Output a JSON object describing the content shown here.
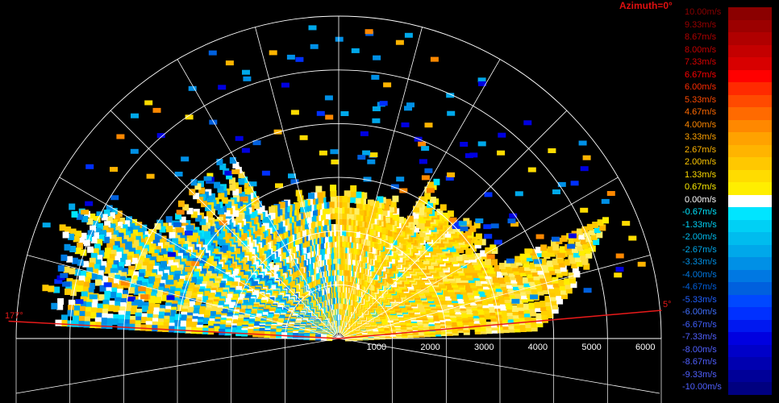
{
  "header": {
    "azimuth": "Azimuth=0°"
  },
  "angles": {
    "left": "177°",
    "right": "5°"
  },
  "range_labels": [
    "1000",
    "2000",
    "3000",
    "4000",
    "5000",
    "6000"
  ],
  "color_scale": [
    {
      "label": "10.00m/s",
      "color": "#8b0000"
    },
    {
      "label": "9.33m/s",
      "color": "#9c0000"
    },
    {
      "label": "8.67m/s",
      "color": "#b00000"
    },
    {
      "label": "8.00m/s",
      "color": "#c40000"
    },
    {
      "label": "7.33m/s",
      "color": "#d80000"
    },
    {
      "label": "6.67m/s",
      "color": "#ff0000"
    },
    {
      "label": "6.00m/s",
      "color": "#ff2a00"
    },
    {
      "label": "5.33m/s",
      "color": "#ff4a00"
    },
    {
      "label": "4.67m/s",
      "color": "#ff6a00"
    },
    {
      "label": "4.00m/s",
      "color": "#ff8800"
    },
    {
      "label": "3.33m/s",
      "color": "#ffa200"
    },
    {
      "label": "2.67m/s",
      "color": "#ffb400"
    },
    {
      "label": "2.00m/s",
      "color": "#ffc800"
    },
    {
      "label": "1.33m/s",
      "color": "#ffdc00"
    },
    {
      "label": "0.67m/s",
      "color": "#ffee00"
    },
    {
      "label": "0.00m/s",
      "color": "#ffffff"
    },
    {
      "label": "-0.67m/s",
      "color": "#00e5ff"
    },
    {
      "label": "-1.33m/s",
      "color": "#00d0f5"
    },
    {
      "label": "-2.00m/s",
      "color": "#00bcee"
    },
    {
      "label": "-2.67m/s",
      "color": "#00a8ea"
    },
    {
      "label": "-3.33m/s",
      "color": "#0090e6"
    },
    {
      "label": "-4.00m/s",
      "color": "#0078e2"
    },
    {
      "label": "-4.67m/s",
      "color": "#0060de"
    },
    {
      "label": "-5.33m/s",
      "color": "#0048ff"
    },
    {
      "label": "-6.00m/s",
      "color": "#0030ff"
    },
    {
      "label": "-6.67m/s",
      "color": "#0018f0"
    },
    {
      "label": "-7.33m/s",
      "color": "#0000e0"
    },
    {
      "label": "-8.00m/s",
      "color": "#0000c8"
    },
    {
      "label": "-8.67m/s",
      "color": "#0000b0"
    },
    {
      "label": "-9.33m/s",
      "color": "#000098"
    },
    {
      "label": "-10.00m/s",
      "color": "#000080"
    }
  ]
}
